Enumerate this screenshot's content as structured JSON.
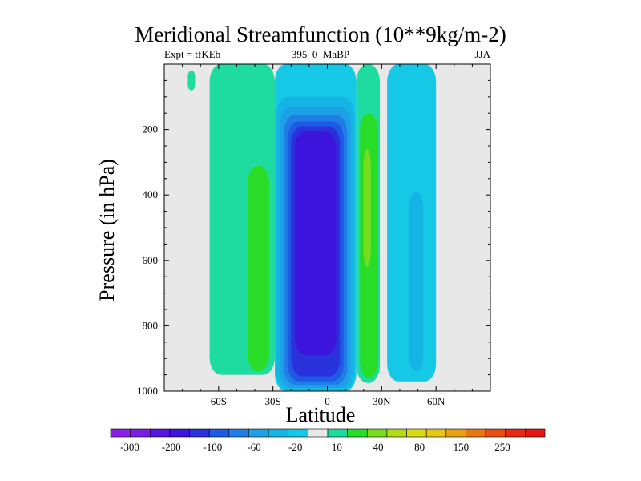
{
  "chart_data": {
    "type": "contour",
    "title": "Meridional Streamfunction (10**9kg/m-2)",
    "subtitle_left": "Expt = tfKEb",
    "subtitle_center": "395_0_MaBP",
    "subtitle_right": "JJA",
    "xlabel": "Latitude",
    "ylabel": "Pressure (in hPa)",
    "xlim": [
      -90,
      90
    ],
    "ylim": [
      1000,
      0
    ],
    "y_scale": "linear, inverted",
    "x_ticks": [
      {
        "value": -60,
        "label": "60S"
      },
      {
        "value": -30,
        "label": "30S"
      },
      {
        "value": 0,
        "label": "0"
      },
      {
        "value": 30,
        "label": "30N"
      },
      {
        "value": 60,
        "label": "60N"
      }
    ],
    "y_ticks": [
      {
        "value": 200,
        "label": "200"
      },
      {
        "value": 400,
        "label": "400"
      },
      {
        "value": 600,
        "label": "600"
      },
      {
        "value": 800,
        "label": "800"
      },
      {
        "value": 1000,
        "label": "1000"
      }
    ],
    "background_color": "#e8e8e8",
    "colorbar": {
      "colors": [
        "#8c1ee6",
        "#7a1ee6",
        "#5a14e0",
        "#3c14dc",
        "#2a32dc",
        "#1e5ae6",
        "#1e7ee6",
        "#1ea0e6",
        "#14b4e6",
        "#14c8e6",
        "#e8e8e8",
        "#1edca0",
        "#28dc28",
        "#78dc1e",
        "#b4dc14",
        "#dcdc14",
        "#e6c814",
        "#e6a014",
        "#e67814",
        "#e65014",
        "#e62814",
        "#e61414"
      ],
      "labels": [
        "-300",
        "-200",
        "-100",
        "-60",
        "-20",
        "10",
        "40",
        "80",
        "150",
        "250"
      ]
    },
    "regions": [
      {
        "color": "#1edca0",
        "lat_min": -77,
        "lat_max": -73,
        "p_top": 20,
        "p_bottom": 80
      },
      {
        "color": "#1edca0",
        "lat_min": -65,
        "lat_max": -29,
        "p_top": 0,
        "p_bottom": 950
      },
      {
        "color": "#28dc28",
        "lat_min": -44,
        "lat_max": -32,
        "p_top": 310,
        "p_bottom": 940
      },
      {
        "color": "#14c8e6",
        "lat_min": -29,
        "lat_max": 16,
        "p_top": 0,
        "p_bottom": 1000
      },
      {
        "color": "#14b4e6",
        "lat_min": -28,
        "lat_max": 15,
        "p_top": 100,
        "p_bottom": 995
      },
      {
        "color": "#1ea0e6",
        "lat_min": -26,
        "lat_max": 13,
        "p_top": 130,
        "p_bottom": 990
      },
      {
        "color": "#1e7ee6",
        "lat_min": -24,
        "lat_max": 11,
        "p_top": 155,
        "p_bottom": 980
      },
      {
        "color": "#1e5ae6",
        "lat_min": -22,
        "lat_max": 9,
        "p_top": 175,
        "p_bottom": 970
      },
      {
        "color": "#2a32dc",
        "lat_min": -20,
        "lat_max": 7,
        "p_top": 190,
        "p_bottom": 955
      },
      {
        "color": "#3c14dc",
        "lat_min": -18,
        "lat_max": 5,
        "p_top": 205,
        "p_bottom": 890
      },
      {
        "color": "#1edca0",
        "lat_min": 16,
        "lat_max": 29,
        "p_top": 0,
        "p_bottom": 975
      },
      {
        "color": "#28dc28",
        "lat_min": 18,
        "lat_max": 28,
        "p_top": 150,
        "p_bottom": 960
      },
      {
        "color": "#78dc1e",
        "lat_min": 20,
        "lat_max": 24,
        "p_top": 260,
        "p_bottom": 620
      },
      {
        "color": "#14c8e6",
        "lat_min": 33,
        "lat_max": 60,
        "p_top": 0,
        "p_bottom": 970
      },
      {
        "color": "#14b4e6",
        "lat_min": 45,
        "lat_max": 53,
        "p_top": 390,
        "p_bottom": 940
      }
    ]
  }
}
